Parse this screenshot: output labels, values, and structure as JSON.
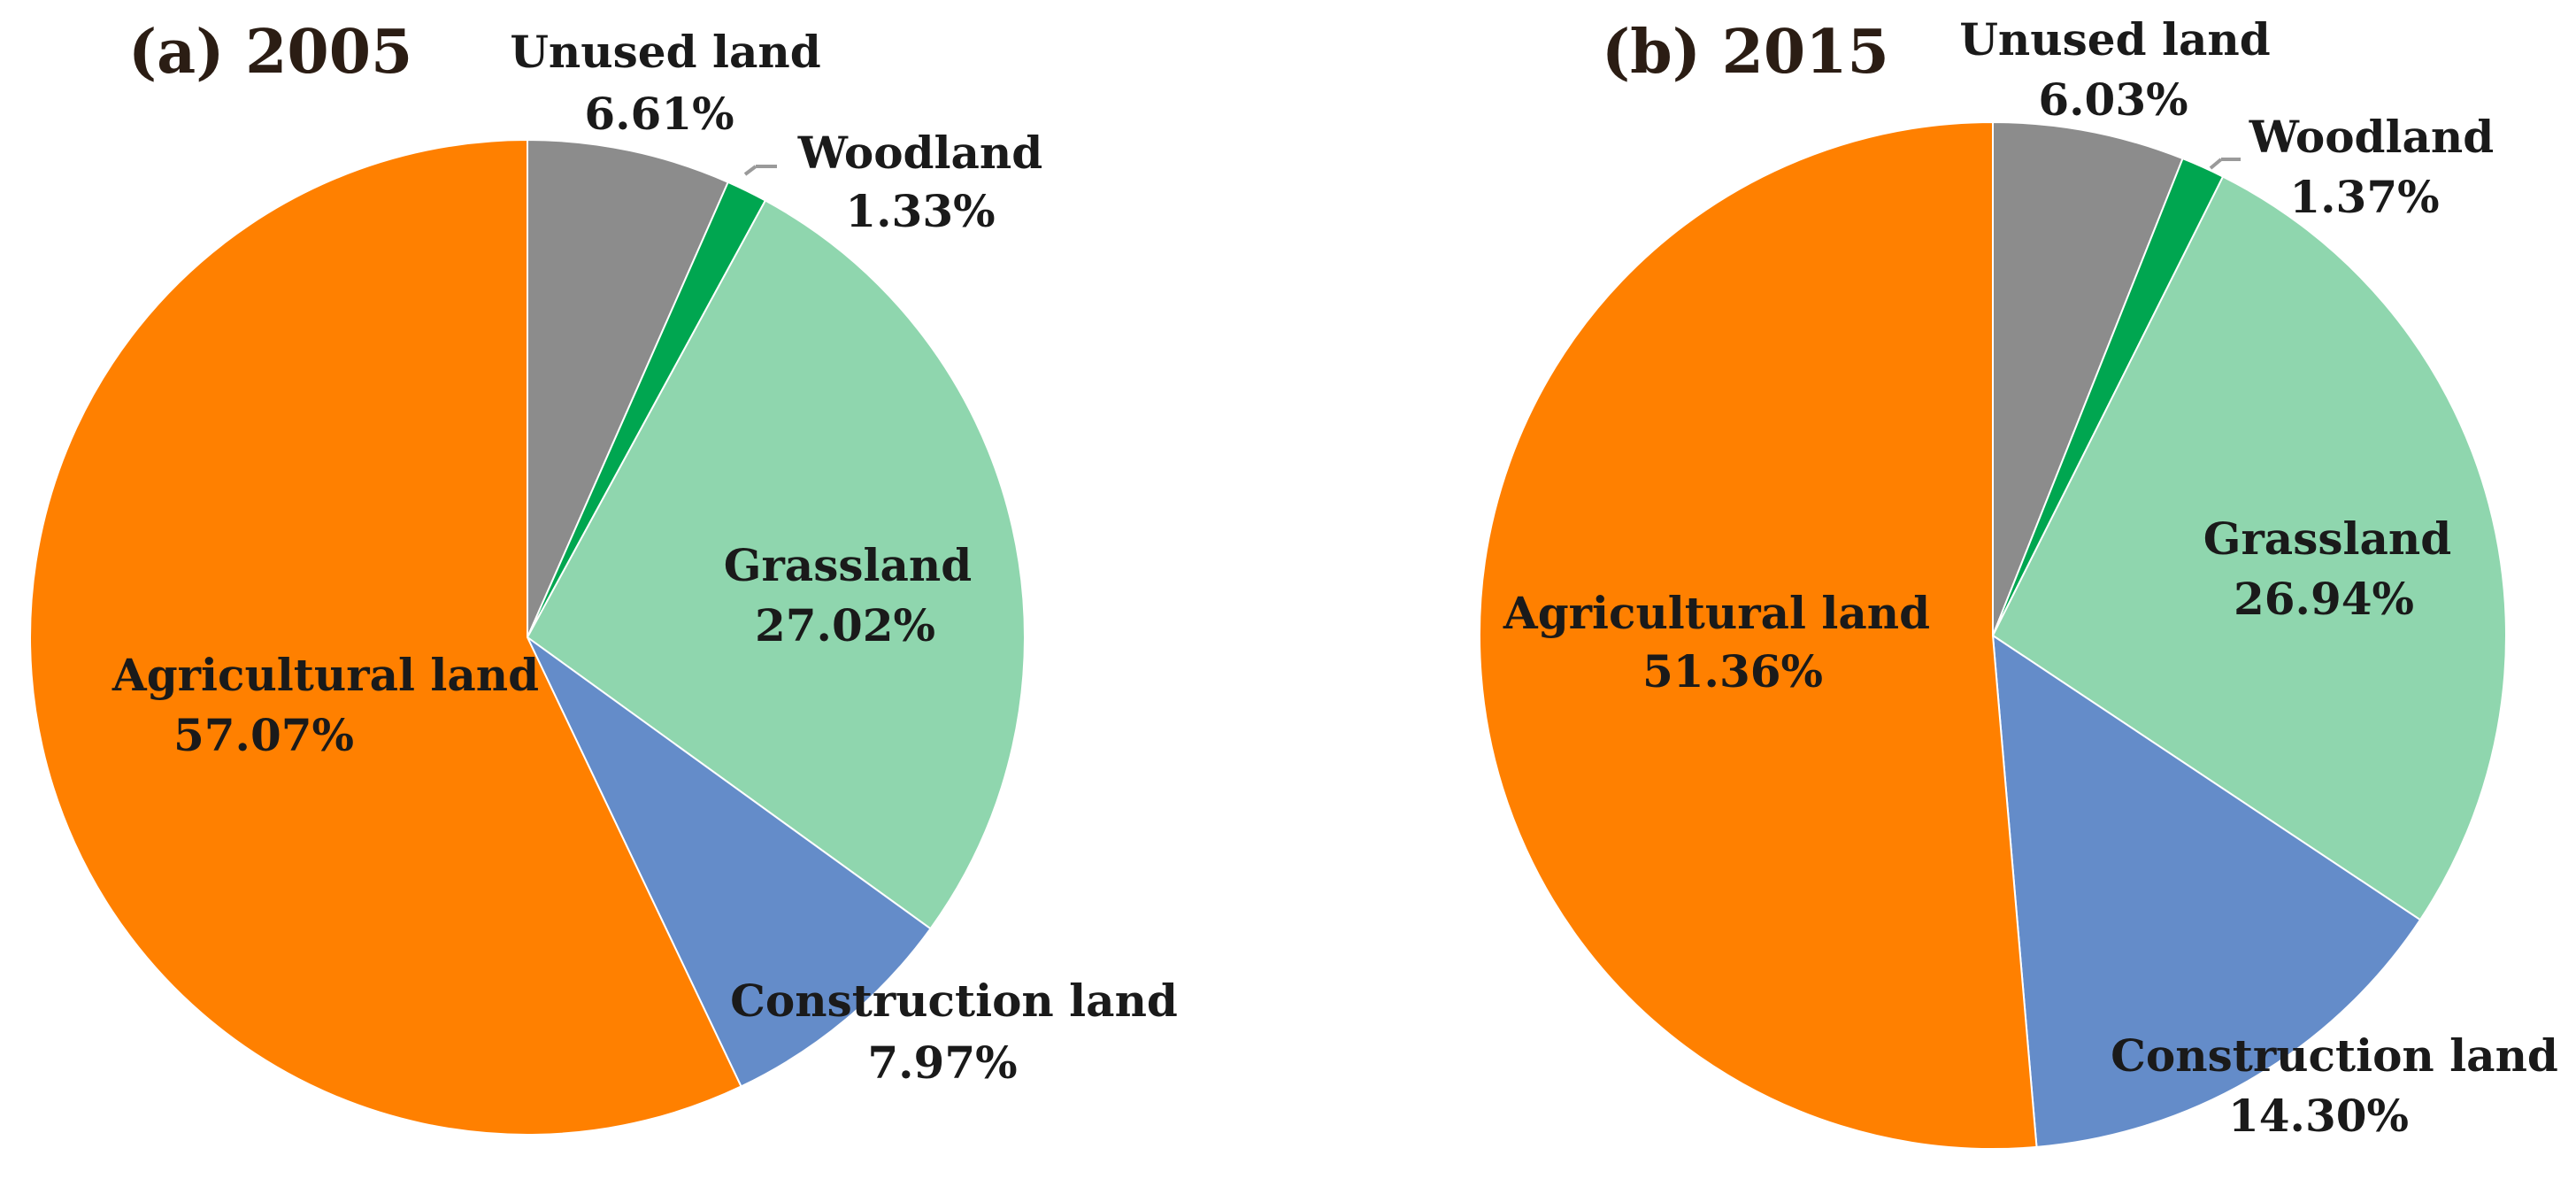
{
  "chart_data": [
    {
      "type": "pie",
      "title": "(a) 2005",
      "slices": [
        {
          "label": "Unused land",
          "value": 6.61,
          "value_text": "6.61%",
          "color": "#8c8c8c"
        },
        {
          "label": "Woodland",
          "value": 1.33,
          "value_text": "1.33%",
          "color": "#00a650"
        },
        {
          "label": "Grassland",
          "value": 27.02,
          "value_text": "27.02%",
          "color": "#8fd6ae"
        },
        {
          "label": "Construction land",
          "value": 7.97,
          "value_text": "7.97%",
          "color": "#648cc9"
        },
        {
          "label": "Agricultural land",
          "value": 57.07,
          "value_text": "57.07%",
          "color": "#ff8000"
        }
      ]
    },
    {
      "type": "pie",
      "title": "(b) 2015",
      "slices": [
        {
          "label": "Unused land",
          "value": 6.03,
          "value_text": "6.03%",
          "color": "#8c8c8c"
        },
        {
          "label": "Woodland",
          "value": 1.37,
          "value_text": "1.37%",
          "color": "#00a650"
        },
        {
          "label": "Grassland",
          "value": 26.94,
          "value_text": "26.94%",
          "color": "#8fd6ae"
        },
        {
          "label": "Construction land",
          "value": 14.3,
          "value_text": "14.30%",
          "color": "#648cc9"
        },
        {
          "label": "Agricultural land",
          "value": 51.36,
          "value_text": "51.36%",
          "color": "#ff8000"
        }
      ]
    }
  ]
}
